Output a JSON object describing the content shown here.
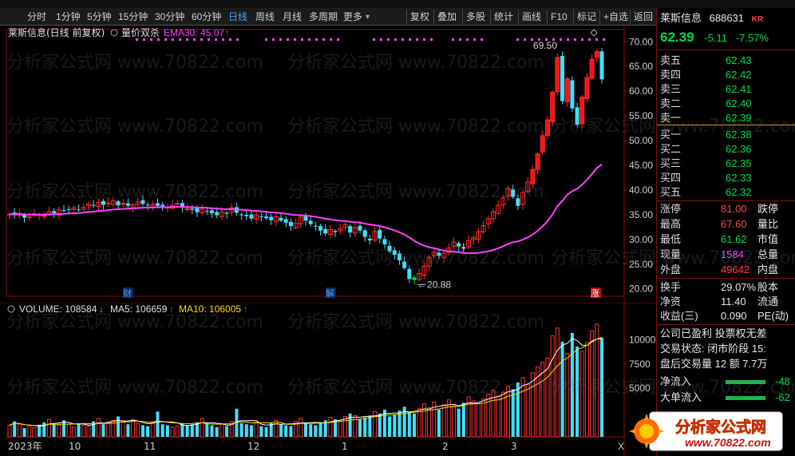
{
  "toolbar": {
    "periods": [
      "分时",
      "1分钟",
      "5分钟",
      "15分钟",
      "30分钟",
      "60分钟",
      "日线",
      "周线",
      "月线",
      "多周期",
      "更多"
    ],
    "active_period": "日线",
    "right_items": [
      "复权",
      "叠加",
      "多股",
      "统计",
      "画线",
      "F10",
      "标记",
      "+自选",
      "返回"
    ]
  },
  "main_chart": {
    "header_title": "莱斯信息(日线 前复权)",
    "indicator_name": "量价双杀",
    "ema_label": "EMA30: 45.07",
    "ema_arrow": "↑",
    "max_label": "69.50",
    "min_label": "20.88",
    "event_markers": [
      {
        "text": "财",
        "color": "#4fa0ff"
      },
      {
        "text": "解",
        "color": "#4fa0ff"
      },
      {
        "text": "涨",
        "color": "#ffffff"
      }
    ]
  },
  "volume_chart": {
    "volume_label": "VOLUME: 108584",
    "volume_arrow": "↓",
    "ma5_label": "MA5: 106659",
    "ma5_arrow": "↑",
    "ma10_label": "MA10: 106005",
    "ma10_arrow": "↑",
    "close_x": "X"
  },
  "chart_data": [
    {
      "type": "candlestick",
      "title": "莱斯信息(日线 前复权)",
      "y_ticks": [
        "70.00",
        "65.00",
        "60.00",
        "55.00",
        "50.00",
        "45.00",
        "40.00",
        "35.00",
        "30.00",
        "25.00",
        "20.00"
      ],
      "ylim": [
        18.5,
        71.5
      ],
      "x_labels": [
        "2023年",
        "10",
        "11",
        "12",
        "1",
        "2",
        "3"
      ],
      "close": [
        35.1,
        34.9,
        35.3,
        34.4,
        34.6,
        35.2,
        35.0,
        34.8,
        35.6,
        35.3,
        36.0,
        35.8,
        36.1,
        36.4,
        36.0,
        36.5,
        37.2,
        36.9,
        37.5,
        37.0,
        37.4,
        37.8,
        36.9,
        37.3,
        36.8,
        37.0,
        37.6,
        37.2,
        36.9,
        37.1,
        36.8,
        36.7,
        36.5,
        36.9,
        37.3,
        36.4,
        36.2,
        36.0,
        35.5,
        36.1,
        35.7,
        35.3,
        34.9,
        35.6,
        35.2,
        36.4,
        35.4,
        35.0,
        34.7,
        34.2,
        35.0,
        34.5,
        34.3,
        33.9,
        34.6,
        33.8,
        33.4,
        32.7,
        33.3,
        34.5,
        33.8,
        33.1,
        32.6,
        31.8,
        31.2,
        32.0,
        31.5,
        32.2,
        33.0,
        31.4,
        32.4,
        31.8,
        30.5,
        29.8,
        31.6,
        30.2,
        29.0,
        27.6,
        26.9,
        25.8,
        24.2,
        22.0,
        21.8,
        23.1,
        24.6,
        26.4,
        27.4,
        26.7,
        27.2,
        28.3,
        29.5,
        28.6,
        28.2,
        29.8,
        30.4,
        31.6,
        32.8,
        34.2,
        35.6,
        36.9,
        38.4,
        40.3,
        38.6,
        36.8,
        39.5,
        41.6,
        44.2,
        47.3,
        51.0,
        54.2,
        59.8,
        66.8,
        58.0,
        62.5,
        56.5,
        53.2,
        58.8,
        62.8,
        66.5,
        68.0,
        62.4
      ],
      "ema30_last": 45.07,
      "series": [
        {
          "name": "EMA30",
          "color": "#ff40ff"
        }
      ]
    },
    {
      "type": "bar",
      "title": "VOLUME",
      "y_ticks": [
        "10000",
        "7500",
        "5000"
      ],
      "ylim": [
        0,
        12500
      ],
      "values": [
        1200,
        1600,
        1300,
        900,
        1100,
        950,
        1250,
        1500,
        1800,
        1400,
        1200,
        1700,
        1300,
        1000,
        1400,
        1200,
        1100,
        1600,
        1900,
        1300,
        1500,
        1700,
        2100,
        1600,
        1300,
        1800,
        1400,
        1200,
        1100,
        1500,
        2600,
        1300,
        1200,
        1000,
        1100,
        1400,
        1200,
        1300,
        1500,
        1900,
        1400,
        1200,
        1000,
        1300,
        1100,
        1600,
        2900,
        1400,
        1300,
        1200,
        1500,
        1100,
        1000,
        1400,
        1700,
        1300,
        1200,
        1100,
        1600,
        1900,
        1400,
        1300,
        1200,
        1500,
        1700,
        2000,
        1800,
        1600,
        2100,
        2400,
        2200,
        1800,
        2000,
        2200,
        2600,
        2400,
        2800,
        2100,
        2300,
        2700,
        3100,
        2600,
        2400,
        2900,
        3400,
        3000,
        3600,
        2800,
        3300,
        3800,
        3200,
        2900,
        3500,
        4100,
        3700,
        3400,
        3900,
        4400,
        4800,
        4200,
        4600,
        5200,
        4900,
        5600,
        6100,
        5400,
        6600,
        7200,
        7700,
        8100,
        10400,
        11200,
        9800,
        8600,
        10700,
        9300,
        8800,
        9700,
        10900,
        11600,
        10200
      ],
      "series": [
        {
          "name": "MA5",
          "color": "#ffffff",
          "last": 106659
        },
        {
          "name": "MA10",
          "color": "#ffd700",
          "last": 106005
        }
      ]
    }
  ],
  "quote_panel": {
    "name": "莱斯信息",
    "code": "688631",
    "kr": "KR",
    "price": "62.39",
    "change": "-5.11",
    "change_pct": "-7.57%",
    "asks": [
      {
        "label": "卖五",
        "price": "62.43"
      },
      {
        "label": "卖四",
        "price": "62.42"
      },
      {
        "label": "卖三",
        "price": "62.41"
      },
      {
        "label": "卖二",
        "price": "62.40"
      },
      {
        "label": "卖一",
        "price": "62.39"
      }
    ],
    "bids": [
      {
        "label": "买一",
        "price": "62.38"
      },
      {
        "label": "买二",
        "price": "62.36"
      },
      {
        "label": "买三",
        "price": "62.35"
      },
      {
        "label": "买四",
        "price": "62.33"
      },
      {
        "label": "买五",
        "price": "62.32"
      }
    ],
    "stats": [
      {
        "label": "涨停",
        "value": "81.00",
        "label2": "跌停",
        "color": "red"
      },
      {
        "label": "最高",
        "value": "67.60",
        "label2": "量比",
        "color": "red"
      },
      {
        "label": "最低",
        "value": "61.62",
        "label2": "市值",
        "color": "green"
      },
      {
        "label": "现量",
        "value": "1584",
        "label2": "总量",
        "color": "magenta"
      },
      {
        "label": "外盘",
        "value": "49642",
        "label2": "内盘",
        "color": "red"
      }
    ],
    "stats2": [
      {
        "label": "换手",
        "value": "29.07%",
        "label2": "股本"
      },
      {
        "label": "净资",
        "value": "11.40",
        "label2": "流通"
      },
      {
        "label": "收益(三)",
        "value": "0.090",
        "label2": "PE(动)"
      }
    ],
    "info_lines": [
      "公司已盈利 投票权无差",
      "交易状态: 闭市阶段 15:",
      "盘后交易量 12 额 7.7万"
    ],
    "flows": [
      {
        "label": "净流入",
        "value": "-48"
      },
      {
        "label": "大单流入",
        "value": "-62"
      }
    ]
  },
  "logo": {
    "text": "分析家公式网",
    "url": "www.70822.com"
  },
  "watermark": {
    "text": "分析家公式网 www.70822.com"
  }
}
